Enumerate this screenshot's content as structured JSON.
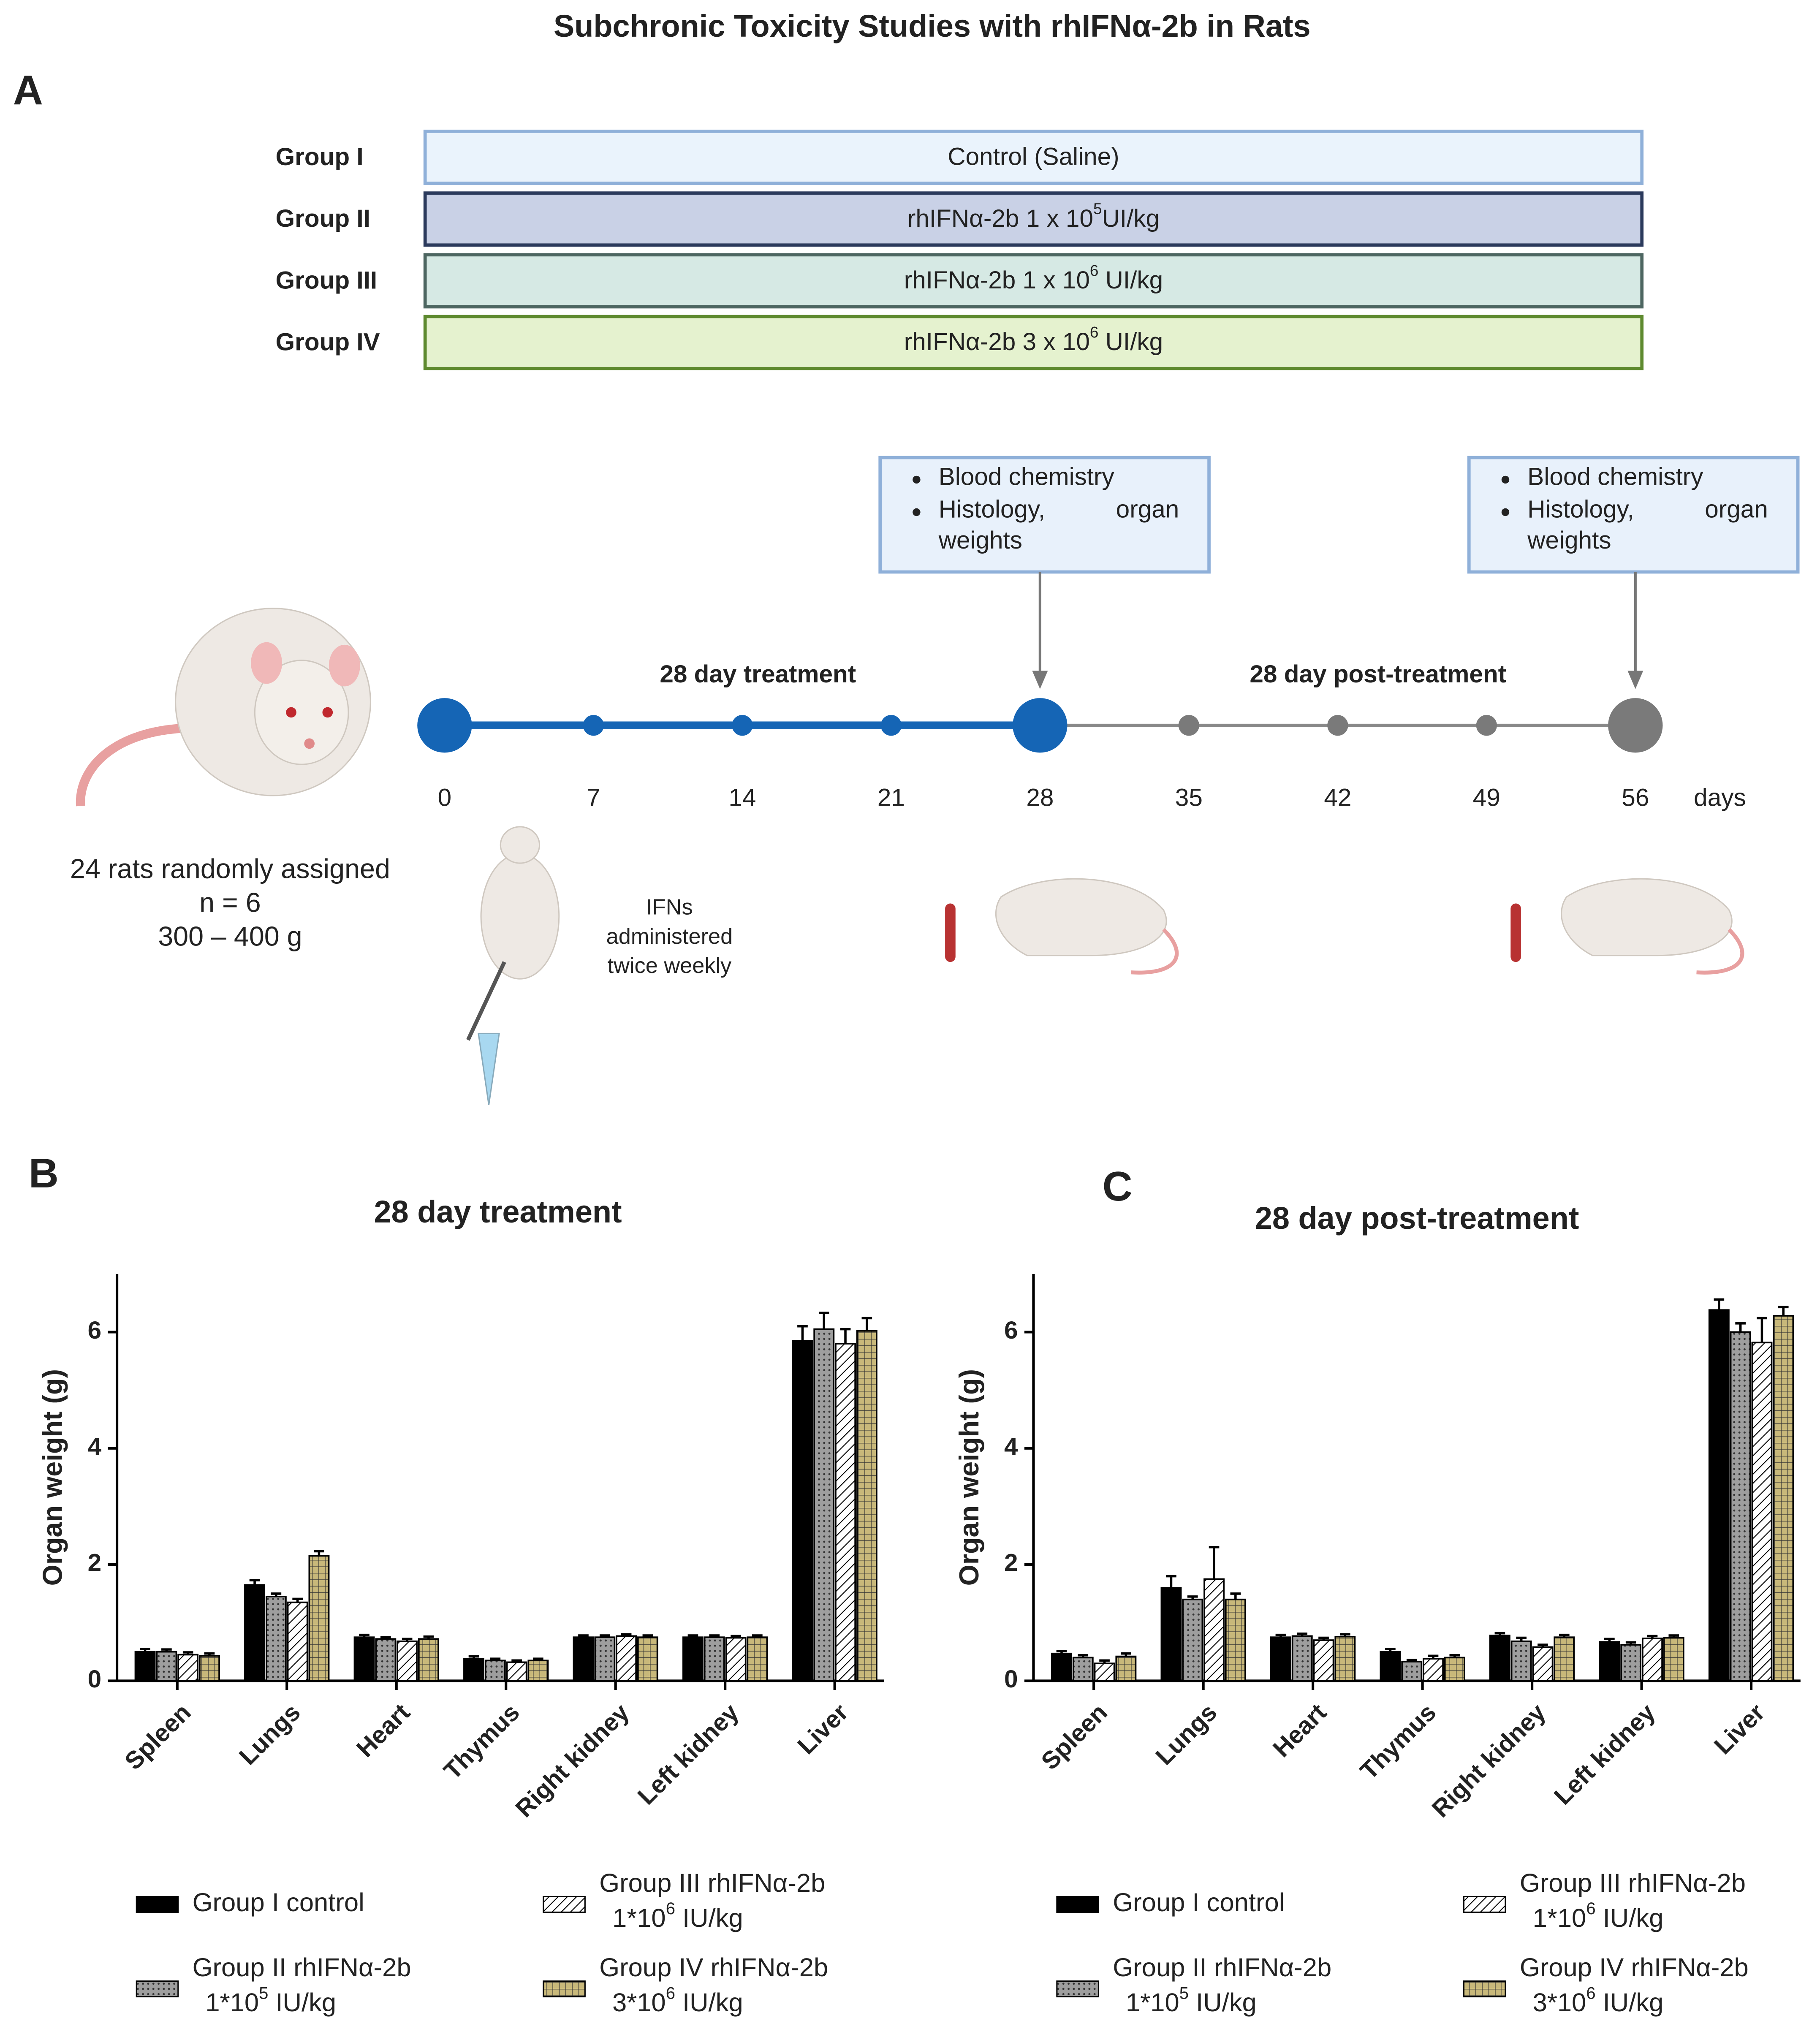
{
  "title": "Subchronic Toxicity Studies with rhIFNα-2b in Rats",
  "panel_a": {
    "label": "A",
    "groups": [
      {
        "label": "Group I",
        "text": "Control (Saline)"
      },
      {
        "label": "Group II",
        "text": "rhIFNα-2b  1 x 10",
        "exp": "5",
        "unit": "UI/kg"
      },
      {
        "label": "Group III",
        "text": "rhIFNα-2b  1 x 10",
        "exp": "6",
        "unit": " UI/kg"
      },
      {
        "label": "Group IV",
        "text": "rhIFNα-2b  3 x 10",
        "exp": "6",
        "unit": " UI/kg"
      }
    ],
    "phase_labels": [
      "28 day treatment",
      "28 day post-treatment"
    ],
    "days": [
      0,
      7,
      14,
      21,
      28,
      35,
      42,
      49,
      56
    ],
    "days_unit": "days",
    "sampling": [
      {
        "items": [
          "Blood chemistry",
          "Histology,",
          "organ",
          "weights"
        ]
      },
      {
        "items": [
          "Blood chemistry",
          "Histology,",
          "organ",
          "weights"
        ]
      }
    ],
    "animals": [
      "24 rats randomly assigned",
      "n = 6",
      "300 – 400 g"
    ],
    "dosing": [
      "IFNs",
      "administered",
      "twice weekly"
    ]
  },
  "chart_data": [
    {
      "type": "bar",
      "panel_label": "B",
      "title": "28 day treatment",
      "ylabel": "Organ weight (g)",
      "categories": [
        "Spleen",
        "Lungs",
        "Heart",
        "Thymus",
        "Right kidney",
        "Left kidney",
        "Liver"
      ],
      "ylim": [
        0,
        7
      ],
      "yticks": [
        0,
        2,
        4,
        6
      ],
      "series": [
        {
          "name": "Group I control",
          "color": "#000000",
          "pattern": "none",
          "values": [
            0.5,
            1.65,
            0.75,
            0.38,
            0.75,
            0.75,
            5.85
          ],
          "errors": [
            0.05,
            0.08,
            0.04,
            0.04,
            0.03,
            0.03,
            0.25
          ]
        },
        {
          "name": "Group II rhIFNα-2b",
          "dose_base": "1*10",
          "dose_exp": "5",
          "dose_unit": " IU/kg",
          "color": "#9e9e9e",
          "pattern": "dots",
          "values": [
            0.5,
            1.45,
            0.72,
            0.35,
            0.75,
            0.75,
            6.05
          ],
          "errors": [
            0.04,
            0.05,
            0.03,
            0.03,
            0.03,
            0.03,
            0.28
          ]
        },
        {
          "name": "Group III rhIFNα-2b",
          "dose_base": "1*10",
          "dose_exp": "6",
          "dose_unit": " IU/kg",
          "color": "#ffffff",
          "pattern": "hatch",
          "values": [
            0.45,
            1.35,
            0.68,
            0.32,
            0.77,
            0.74,
            5.8
          ],
          "errors": [
            0.04,
            0.06,
            0.04,
            0.03,
            0.03,
            0.03,
            0.25
          ]
        },
        {
          "name": "Group IV rhIFNα-2b",
          "dose_base": "3*10",
          "dose_exp": "6",
          "dose_unit": " IU/kg",
          "color": "#c8b87a",
          "pattern": "grid",
          "values": [
            0.43,
            2.15,
            0.72,
            0.35,
            0.75,
            0.75,
            6.02
          ],
          "errors": [
            0.04,
            0.08,
            0.04,
            0.03,
            0.03,
            0.03,
            0.22
          ]
        }
      ]
    },
    {
      "type": "bar",
      "panel_label": "C",
      "title": "28 day post-treatment",
      "ylabel": "Organ weight (g)",
      "categories": [
        "Spleen",
        "Lungs",
        "Heart",
        "Thymus",
        "Right kidney",
        "Left kidney",
        "Liver"
      ],
      "ylim": [
        0,
        7
      ],
      "yticks": [
        0,
        2,
        4,
        6
      ],
      "series": [
        {
          "name": "Group I control",
          "color": "#000000",
          "pattern": "none",
          "values": [
            0.47,
            1.6,
            0.75,
            0.5,
            0.78,
            0.67,
            6.38
          ],
          "errors": [
            0.04,
            0.2,
            0.04,
            0.05,
            0.04,
            0.05,
            0.18
          ]
        },
        {
          "name": "Group II rhIFNα-2b",
          "dose_base": "1*10",
          "dose_exp": "5",
          "dose_unit": " IU/kg",
          "color": "#9e9e9e",
          "pattern": "dots",
          "values": [
            0.4,
            1.4,
            0.77,
            0.33,
            0.68,
            0.62,
            6.0
          ],
          "errors": [
            0.04,
            0.05,
            0.04,
            0.03,
            0.06,
            0.04,
            0.15
          ]
        },
        {
          "name": "Group III rhIFNα-2b",
          "dose_base": "1*10",
          "dose_exp": "6",
          "dose_unit": " IU/kg",
          "color": "#ffffff",
          "pattern": "hatch",
          "values": [
            0.3,
            1.75,
            0.7,
            0.38,
            0.58,
            0.73,
            5.82
          ],
          "errors": [
            0.05,
            0.55,
            0.04,
            0.05,
            0.04,
            0.04,
            0.42
          ]
        },
        {
          "name": "Group IV rhIFNα-2b",
          "dose_base": "3*10",
          "dose_exp": "6",
          "dose_unit": " IU/kg",
          "color": "#c8b87a",
          "pattern": "grid",
          "values": [
            0.42,
            1.4,
            0.76,
            0.4,
            0.75,
            0.74,
            6.28
          ],
          "errors": [
            0.05,
            0.1,
            0.04,
            0.04,
            0.04,
            0.04,
            0.15
          ]
        }
      ]
    }
  ]
}
